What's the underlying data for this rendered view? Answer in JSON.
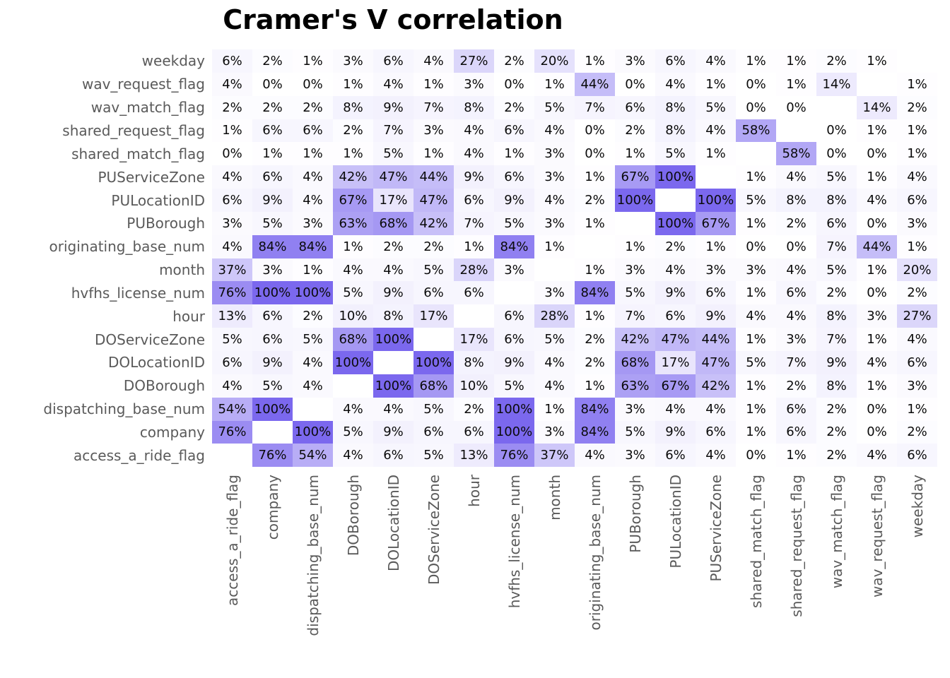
{
  "title": "Cramer's V correlation",
  "colors": {
    "title_text": "#000000",
    "label_text": "#5a5a5a",
    "cell_text": "#0a0a0a",
    "scale_min_color": "#ffffff",
    "scale_max_color": "#7b68ee"
  },
  "chart_data": {
    "type": "heatmap",
    "title": "Cramer's V correlation",
    "unit": "%",
    "legend": "none",
    "grid": "off",
    "color_scale": {
      "min": 0,
      "max": 100,
      "min_color": "#ffffff",
      "max_color": "#7b68ee"
    },
    "diagonal": "blank",
    "columns": [
      "access_a_ride_flag",
      "company",
      "dispatching_base_num",
      "DOBorough",
      "DOLocationID",
      "DOServiceZone",
      "hour",
      "hvfhs_license_num",
      "month",
      "originating_base_num",
      "PUBorough",
      "PULocationID",
      "PUServiceZone",
      "shared_match_flag",
      "shared_request_flag",
      "wav_match_flag",
      "wav_request_flag",
      "weekday"
    ],
    "rows": [
      "weekday",
      "wav_request_flag",
      "wav_match_flag",
      "shared_request_flag",
      "shared_match_flag",
      "PUServiceZone",
      "PULocationID",
      "PUBorough",
      "originating_base_num",
      "month",
      "hvfhs_license_num",
      "hour",
      "DOServiceZone",
      "DOLocationID",
      "DOBorough",
      "dispatching_base_num",
      "company",
      "access_a_ride_flag"
    ],
    "values": [
      [
        6,
        2,
        1,
        3,
        6,
        4,
        27,
        2,
        20,
        1,
        3,
        6,
        4,
        1,
        1,
        2,
        1,
        null
      ],
      [
        4,
        0,
        0,
        1,
        4,
        1,
        3,
        0,
        1,
        44,
        0,
        4,
        1,
        0,
        1,
        14,
        null,
        1
      ],
      [
        2,
        2,
        2,
        8,
        9,
        7,
        8,
        2,
        5,
        7,
        6,
        8,
        5,
        0,
        0,
        null,
        14,
        2
      ],
      [
        1,
        6,
        6,
        2,
        7,
        3,
        4,
        6,
        4,
        0,
        2,
        8,
        4,
        58,
        null,
        0,
        1,
        1
      ],
      [
        0,
        1,
        1,
        1,
        5,
        1,
        4,
        1,
        3,
        0,
        1,
        5,
        1,
        null,
        58,
        0,
        0,
        1
      ],
      [
        4,
        6,
        4,
        42,
        47,
        44,
        9,
        6,
        3,
        1,
        67,
        100,
        null,
        1,
        4,
        5,
        1,
        4
      ],
      [
        6,
        9,
        4,
        67,
        17,
        47,
        6,
        9,
        4,
        2,
        100,
        null,
        100,
        5,
        8,
        8,
        4,
        6
      ],
      [
        3,
        5,
        3,
        63,
        68,
        42,
        7,
        5,
        3,
        1,
        null,
        100,
        67,
        1,
        2,
        6,
        0,
        3
      ],
      [
        4,
        84,
        84,
        1,
        2,
        2,
        1,
        84,
        1,
        null,
        1,
        2,
        1,
        0,
        0,
        7,
        44,
        1
      ],
      [
        37,
        3,
        1,
        4,
        4,
        5,
        28,
        3,
        null,
        1,
        3,
        4,
        3,
        3,
        4,
        5,
        1,
        20
      ],
      [
        76,
        100,
        100,
        5,
        9,
        6,
        6,
        null,
        3,
        84,
        5,
        9,
        6,
        1,
        6,
        2,
        0,
        2
      ],
      [
        13,
        6,
        2,
        10,
        8,
        17,
        null,
        6,
        28,
        1,
        7,
        6,
        9,
        4,
        4,
        8,
        3,
        27
      ],
      [
        5,
        6,
        5,
        68,
        100,
        null,
        17,
        6,
        5,
        2,
        42,
        47,
        44,
        1,
        3,
        7,
        1,
        4
      ],
      [
        6,
        9,
        4,
        100,
        null,
        100,
        8,
        9,
        4,
        2,
        68,
        17,
        47,
        5,
        7,
        9,
        4,
        6
      ],
      [
        4,
        5,
        4,
        null,
        100,
        68,
        10,
        5,
        4,
        1,
        63,
        67,
        42,
        1,
        2,
        8,
        1,
        3
      ],
      [
        54,
        100,
        null,
        4,
        4,
        5,
        2,
        100,
        1,
        84,
        3,
        4,
        4,
        1,
        6,
        2,
        0,
        1
      ],
      [
        76,
        null,
        100,
        5,
        9,
        6,
        6,
        100,
        3,
        84,
        5,
        9,
        6,
        1,
        6,
        2,
        0,
        2
      ],
      [
        null,
        76,
        54,
        4,
        6,
        5,
        13,
        76,
        37,
        4,
        3,
        6,
        4,
        0,
        1,
        2,
        4,
        6
      ]
    ]
  }
}
